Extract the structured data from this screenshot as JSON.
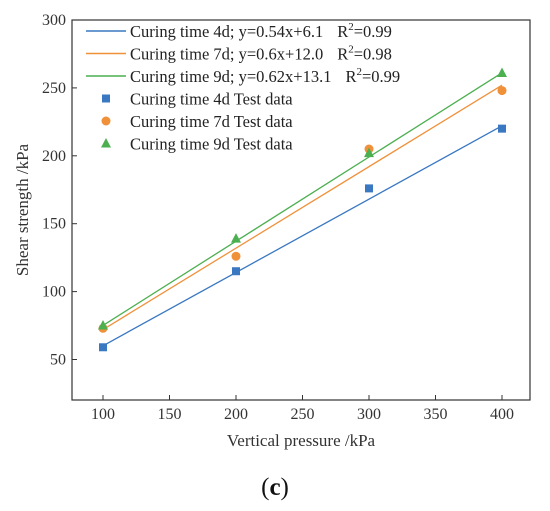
{
  "chart_data": {
    "type": "scatter",
    "xlabel": "Vertical pressure /kPa",
    "ylabel": "Shear strength /kPa",
    "xlim": [
      70,
      430
    ],
    "ylim": [
      30,
      300
    ],
    "xticks": [
      100,
      150,
      200,
      250,
      300,
      350,
      400
    ],
    "yticks": [
      50,
      100,
      150,
      200,
      250,
      300
    ],
    "xtick_labels": [
      "100",
      "150",
      "200",
      "250",
      "300",
      "350",
      "400"
    ],
    "ytick_labels": [
      "50",
      "100",
      "150",
      "200",
      "250",
      "300"
    ],
    "legend_position": "top-left",
    "grid": false,
    "series": [
      {
        "name": "Curing time 4d Test data",
        "marker": "square",
        "color": "#3a78c2",
        "x": [
          100,
          200,
          300,
          400
        ],
        "y": [
          59,
          115,
          176,
          220
        ]
      },
      {
        "name": "Curing time 7d Test data",
        "marker": "circle",
        "color": "#f0913a",
        "x": [
          100,
          200,
          300,
          400
        ],
        "y": [
          73,
          126,
          205,
          248
        ]
      },
      {
        "name": "Curing time 9d Test data",
        "marker": "triangle",
        "color": "#4caf50",
        "x": [
          100,
          200,
          300,
          400
        ],
        "y": [
          75,
          139,
          202,
          261
        ]
      }
    ],
    "fits": [
      {
        "legend_prefix": "Curing time 4d; y=0.54x+6.1",
        "legend_r2": "=0.99",
        "color": "#3a78c2",
        "slope": 0.54,
        "intercept": 6.1,
        "x_range": [
          100,
          400
        ]
      },
      {
        "legend_prefix": "Curing time 7d; y=0.6x+12.0",
        "legend_r2": "=0.98",
        "color": "#f0913a",
        "slope": 0.6,
        "intercept": 12.0,
        "x_range": [
          100,
          400
        ]
      },
      {
        "legend_prefix": "Curing time 9d; y=0.62x+13.1",
        "legend_r2": "=0.99",
        "color": "#4caf50",
        "slope": 0.62,
        "intercept": 13.1,
        "x_range": [
          100,
          400
        ]
      }
    ],
    "r2_symbol": "R",
    "r2_superscript": "2"
  },
  "panel_label": {
    "open": "(",
    "letter": "c",
    "close": ")"
  }
}
